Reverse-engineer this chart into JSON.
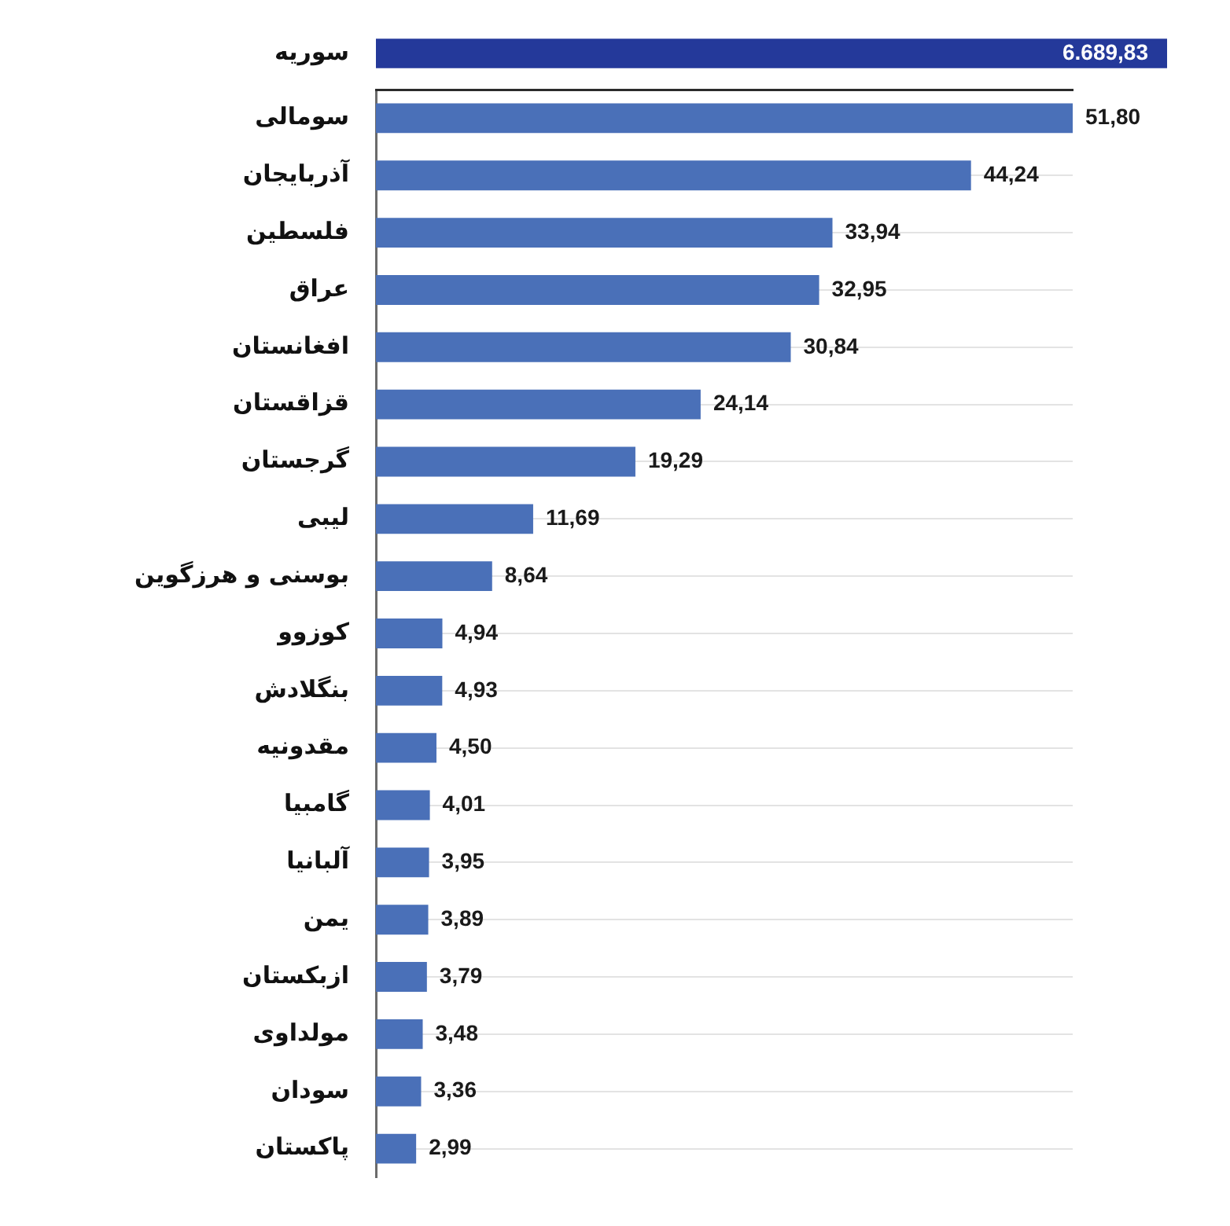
{
  "chart_data": [
    {
      "type": "bar",
      "orientation": "horizontal",
      "categories": [
        "سوریه"
      ],
      "values": [
        6689.83
      ],
      "color": "#24399a",
      "value_labels": [
        "6.689,83"
      ],
      "tick_labels": "y"
    },
    {
      "type": "bar",
      "orientation": "horizontal",
      "categories": [
        "سومالی",
        "آذربایجان",
        "فلسطین",
        "عراق",
        "افغانستان",
        "قزاقستان",
        "گرجستان",
        "لیبی",
        "بوسنی و هرزگوین",
        "کوزوو",
        "بنگلادش",
        "مقدونیه",
        "گامبیا",
        "آلبانیا",
        "یمن",
        "ازبکستان",
        "مولداوی",
        "سودان",
        "پاکستان"
      ],
      "values": [
        51.8,
        44.24,
        33.94,
        32.95,
        30.84,
        24.14,
        19.29,
        11.69,
        8.64,
        4.94,
        4.93,
        4.5,
        4.01,
        3.95,
        3.89,
        3.79,
        3.48,
        3.36,
        2.99
      ],
      "color": "#4a70b8",
      "xlim": [
        0,
        51.8
      ],
      "value_labels": [
        "51,80",
        "44,24",
        "33,94",
        "32,95",
        "30,84",
        "24,14",
        "19,29",
        "11,69",
        "8,64",
        "4,94",
        "4,93",
        "4,50",
        "4,01",
        "3,95",
        "3,89",
        "3,79",
        "3,48",
        "3,36",
        "2,99"
      ],
      "grid": "y",
      "tick_labels": "y"
    }
  ]
}
